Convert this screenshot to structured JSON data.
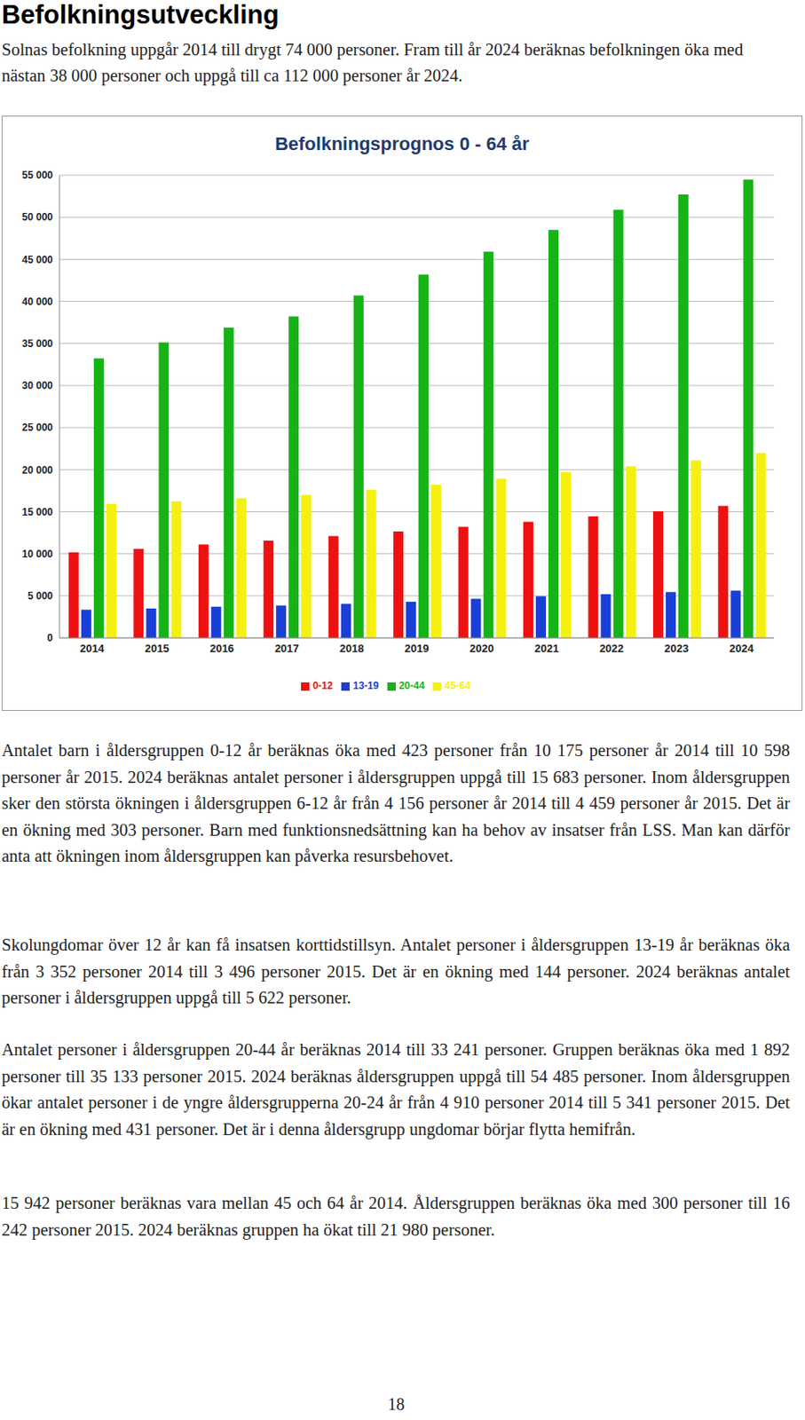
{
  "heading": "Befolkningsutveckling",
  "intro": "Solnas befolkning uppgår 2014 till drygt 74 000 personer. Fram till år 2024 beräknas befolkningen öka med nästan 38 000 personer och uppgå till ca 112 000 personer år 2024.",
  "chart_data": {
    "type": "bar",
    "title": "Befolkningsprognos 0 - 64 år",
    "categories": [
      "2014",
      "2015",
      "2016",
      "2017",
      "2018",
      "2019",
      "2020",
      "2021",
      "2022",
      "2023",
      "2024"
    ],
    "series": [
      {
        "name": "0-12",
        "color": "#ee1111",
        "values": [
          10175,
          10598,
          11100,
          11550,
          12100,
          12650,
          13200,
          13800,
          14450,
          15050,
          15683
        ]
      },
      {
        "name": "13-19",
        "color": "#1a3fd6",
        "values": [
          3352,
          3496,
          3700,
          3850,
          4050,
          4300,
          4650,
          4950,
          5200,
          5450,
          5622
        ]
      },
      {
        "name": "20-44",
        "color": "#16b316",
        "values": [
          33241,
          35133,
          36900,
          38200,
          40700,
          43200,
          45900,
          48500,
          50900,
          52700,
          54485
        ]
      },
      {
        "name": "45-64",
        "color": "#f5f010",
        "values": [
          15942,
          16242,
          16600,
          17000,
          17600,
          18200,
          18900,
          19700,
          20400,
          21100,
          21980
        ]
      }
    ],
    "ylim": [
      0,
      55000
    ],
    "yticks": [
      0,
      {
        "value": 5000,
        "label": "5 000"
      },
      {
        "value": 10000,
        "label": "10 000"
      },
      {
        "value": 15000,
        "label": "15 000"
      },
      {
        "value": 20000,
        "label": "20 000"
      },
      {
        "value": 25000,
        "label": "25 000"
      },
      {
        "value": 30000,
        "label": "30 000"
      },
      {
        "value": 35000,
        "label": "35 000"
      },
      {
        "value": 40000,
        "label": "40 000"
      },
      {
        "value": 45000,
        "label": "45 000"
      },
      {
        "value": 50000,
        "label": "50 000"
      },
      {
        "value": 55000,
        "label": "55 000"
      }
    ],
    "grid": true,
    "legend": "bottom"
  },
  "paragraphs": [
    "Antalet barn i åldersgruppen 0-12 år beräknas öka med 423 personer från 10 175 personer år 2014 till 10 598 personer år 2015. 2024 beräknas antalet personer i åldersgruppen uppgå till 15 683 personer. Inom åldersgruppen sker den största ökningen i åldersgruppen 6-12 år från 4 156 personer år 2014 till 4 459 personer år 2015. Det är en ökning med 303 personer. Barn med funktionsnedsättning kan ha behov av insatser från LSS. Man kan därför anta att ökningen inom åldersgruppen kan påverka resursbehovet.",
    "Skolungdomar över 12 år kan få insatsen korttidstillsyn. Antalet personer i åldersgruppen 13-19 år beräknas öka från 3 352 personer 2014 till 3 496 personer 2015. Det är en ökning med 144 personer. 2024 beräknas antalet personer i åldersgruppen uppgå till 5 622 personer.",
    "Antalet personer i åldersgruppen 20-44 år beräknas 2014 till 33 241 personer. Gruppen beräknas öka med 1 892 personer till 35 133 personer 2015. 2024 beräknas åldersgruppen uppgå till 54 485 personer. Inom åldersgruppen ökar antalet personer i de yngre åldersgrupperna 20-24 år från 4 910 personer 2014 till 5 341 personer 2015. Det är en ökning med 431 personer. Det är i denna åldersgrupp ungdomar börjar flytta hemifrån.",
    "15 942 personer beräknas vara mellan 45 och 64 år 2014. Åldersgruppen beräknas öka med 300 personer till 16 242 personer 2015. 2024 beräknas gruppen ha ökat till 21 980 personer."
  ],
  "page_number": "18"
}
